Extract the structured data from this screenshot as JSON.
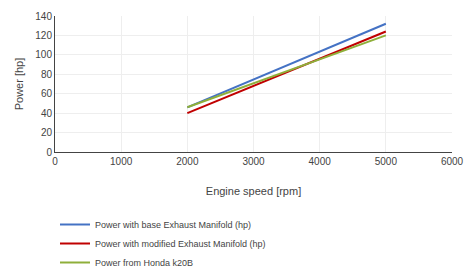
{
  "chart_data": {
    "type": "line",
    "xlabel": "Engine speed [rpm]",
    "ylabel": "Power [hp]",
    "x": [
      2000,
      5000
    ],
    "series": [
      {
        "name": "Power with base Exhaust Manifold (hp)",
        "color": "#4472C4",
        "values": [
          46,
          132
        ]
      },
      {
        "name": "Power with modified Exhaust Manifold (hp)",
        "color": "#C00000",
        "values": [
          40,
          124
        ]
      },
      {
        "name": "Power from Honda k20B",
        "color": "#8FAF3A",
        "values": [
          46,
          120
        ]
      }
    ],
    "xlim": [
      0,
      6000
    ],
    "ylim": [
      0,
      140
    ],
    "xticks": [
      0,
      1000,
      2000,
      3000,
      4000,
      5000,
      6000
    ],
    "yticks": [
      0,
      20,
      40,
      60,
      80,
      100,
      120,
      140
    ],
    "grid": true,
    "legend": "bottom"
  }
}
